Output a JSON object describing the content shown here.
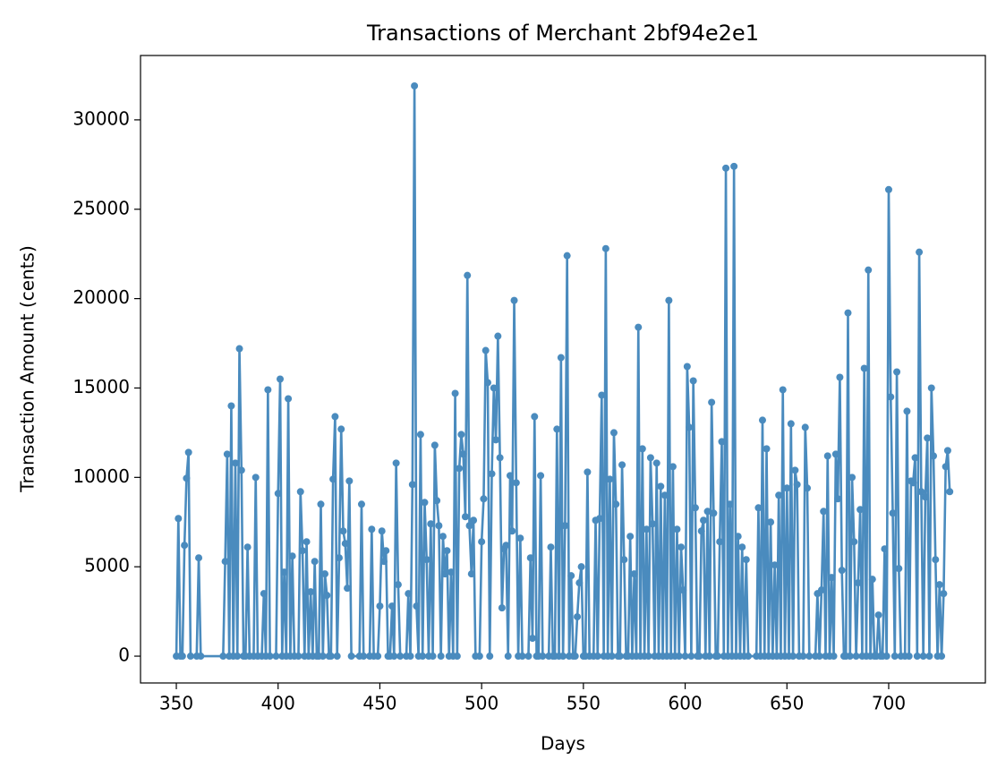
{
  "chart_data": {
    "type": "line",
    "title": "Transactions of Merchant 2bf94e2e1",
    "xlabel": "Days",
    "ylabel": "Transaction Amount (cents)",
    "x": [
      350,
      351,
      352,
      353,
      354,
      355,
      356,
      357,
      360,
      361,
      362,
      373,
      374,
      375,
      376,
      377,
      378,
      379,
      380,
      381,
      382,
      383,
      384,
      385,
      386,
      388,
      389,
      390,
      392,
      393,
      394,
      395,
      396,
      399,
      400,
      401,
      402,
      403,
      404,
      405,
      406,
      407,
      408,
      410,
      411,
      412,
      413,
      414,
      415,
      416,
      417,
      418,
      419,
      420,
      421,
      422,
      423,
      424,
      425,
      426,
      427,
      428,
      429,
      430,
      431,
      432,
      433,
      434,
      435,
      436,
      440,
      441,
      442,
      445,
      446,
      447,
      449,
      450,
      451,
      452,
      453,
      454,
      455,
      456,
      457,
      458,
      459,
      460,
      463,
      464,
      465,
      466,
      467,
      468,
      469,
      470,
      471,
      472,
      473,
      474,
      475,
      476,
      477,
      478,
      479,
      480,
      481,
      482,
      483,
      484,
      485,
      486,
      487,
      488,
      489,
      490,
      491,
      492,
      493,
      494,
      495,
      496,
      497,
      499,
      500,
      501,
      502,
      503,
      504,
      505,
      506,
      507,
      508,
      509,
      510,
      511,
      512,
      513,
      514,
      515,
      516,
      517,
      518,
      519,
      520,
      523,
      524,
      525,
      526,
      527,
      528,
      529,
      530,
      533,
      534,
      535,
      536,
      537,
      538,
      539,
      540,
      541,
      542,
      543,
      544,
      545,
      546,
      547,
      548,
      549,
      550,
      551,
      552,
      553,
      555,
      556,
      557,
      558,
      559,
      560,
      561,
      562,
      563,
      564,
      565,
      566,
      567,
      568,
      569,
      570,
      571,
      572,
      573,
      574,
      575,
      576,
      577,
      578,
      579,
      580,
      581,
      582,
      583,
      584,
      585,
      586,
      587,
      588,
      589,
      590,
      591,
      592,
      593,
      594,
      595,
      596,
      597,
      598,
      599,
      600,
      601,
      602,
      603,
      604,
      605,
      606,
      607,
      608,
      609,
      610,
      611,
      612,
      613,
      614,
      615,
      616,
      617,
      618,
      619,
      620,
      621,
      622,
      623,
      624,
      625,
      626,
      627,
      628,
      629,
      630,
      631,
      635,
      636,
      637,
      638,
      639,
      640,
      641,
      642,
      643,
      644,
      645,
      646,
      647,
      648,
      649,
      650,
      651,
      652,
      653,
      654,
      655,
      656,
      658,
      659,
      660,
      661,
      664,
      665,
      666,
      667,
      668,
      669,
      670,
      671,
      672,
      673,
      674,
      675,
      676,
      677,
      678,
      679,
      680,
      681,
      682,
      683,
      684,
      685,
      686,
      687,
      688,
      689,
      690,
      691,
      692,
      693,
      694,
      695,
      696,
      697,
      698,
      699,
      700,
      701,
      702,
      703,
      704,
      705,
      706,
      708,
      709,
      710,
      711,
      712,
      713,
      714,
      715,
      716,
      717,
      718,
      719,
      720,
      721,
      722,
      723,
      724,
      725,
      726,
      727,
      728,
      729,
      730
    ],
    "series": [
      {
        "color": "#4a8bbe",
        "values": [
          0,
          7700,
          0,
          0,
          6200,
          9950,
          11400,
          0,
          0,
          5500,
          0,
          0,
          5300,
          11300,
          0,
          14000,
          0,
          10800,
          0,
          17200,
          10400,
          0,
          0,
          6100,
          0,
          0,
          10000,
          0,
          0,
          3500,
          0,
          14900,
          0,
          0,
          9100,
          15500,
          0,
          4700,
          0,
          14400,
          0,
          5600,
          0,
          0,
          9200,
          5900,
          0,
          6400,
          0,
          3600,
          0,
          5300,
          0,
          0,
          8500,
          0,
          4600,
          3400,
          0,
          0,
          9900,
          13400,
          0,
          5500,
          12700,
          7000,
          6300,
          3800,
          9800,
          0,
          0,
          8500,
          0,
          0,
          7100,
          0,
          0,
          2800,
          7000,
          5300,
          5900,
          0,
          0,
          2800,
          0,
          10800,
          4000,
          0,
          0,
          3500,
          0,
          9600,
          31900,
          2800,
          0,
          12400,
          0,
          8600,
          5400,
          0,
          7400,
          0,
          11800,
          8700,
          7300,
          0,
          6700,
          4600,
          5900,
          0,
          4700,
          0,
          14700,
          0,
          10500,
          12400,
          11300,
          7800,
          21300,
          7300,
          4600,
          7600,
          0,
          0,
          6400,
          8800,
          17100,
          15300,
          0,
          10200,
          15000,
          12100,
          17900,
          11100,
          2700,
          6000,
          6200,
          0,
          10100,
          7000,
          19900,
          9700,
          0,
          6600,
          0,
          0,
          5500,
          1000,
          13400,
          0,
          0,
          10100,
          0,
          0,
          6100,
          0,
          0,
          12700,
          0,
          16700,
          0,
          7300,
          22400,
          0,
          4500,
          0,
          0,
          2200,
          4100,
          5000,
          0,
          0,
          10300,
          0,
          0,
          7600,
          0,
          7700,
          14600,
          0,
          22800,
          0,
          9900,
          0,
          12500,
          8500,
          0,
          0,
          10700,
          5400,
          0,
          0,
          6700,
          0,
          4600,
          0,
          18400,
          0,
          11600,
          0,
          7100,
          0,
          11100,
          7400,
          0,
          10800,
          0,
          9500,
          0,
          9000,
          0,
          19900,
          0,
          10600,
          0,
          7100,
          0,
          6100,
          3700,
          0,
          16200,
          12800,
          0,
          15400,
          8300,
          0,
          0,
          7000,
          7600,
          0,
          8100,
          0,
          14200,
          8000,
          0,
          0,
          6400,
          12000,
          0,
          27300,
          0,
          8500,
          0,
          27400,
          0,
          6700,
          0,
          6100,
          0,
          5400,
          0,
          0,
          8300,
          0,
          13200,
          0,
          11600,
          0,
          7500,
          0,
          5100,
          0,
          9000,
          0,
          14900,
          0,
          9400,
          0,
          13000,
          0,
          10400,
          9600,
          0,
          0,
          12800,
          9400,
          0,
          0,
          3500,
          0,
          3700,
          8100,
          0,
          11200,
          0,
          4400,
          0,
          11300,
          8800,
          15600,
          4800,
          0,
          0,
          19200,
          0,
          10000,
          6400,
          0,
          4100,
          8200,
          0,
          16100,
          0,
          21600,
          0,
          4300,
          0,
          0,
          2300,
          0,
          0,
          6000,
          0,
          26100,
          14500,
          8000,
          0,
          15900,
          4900,
          0,
          0,
          13700,
          0,
          9800,
          9700,
          11100,
          0,
          22600,
          9200,
          0,
          8900,
          12200,
          0,
          15000,
          11200,
          5400,
          0,
          4000,
          0,
          3500,
          10600,
          11500,
          9200
        ]
      }
    ],
    "xlim": [
      332.4,
      747.5
    ],
    "ylim": [
      -1500,
      33600
    ],
    "xticks": [
      350,
      400,
      450,
      500,
      550,
      600,
      650,
      700
    ],
    "yticks": [
      0,
      5000,
      10000,
      15000,
      20000,
      25000,
      30000
    ],
    "grid": false,
    "markers": true
  }
}
